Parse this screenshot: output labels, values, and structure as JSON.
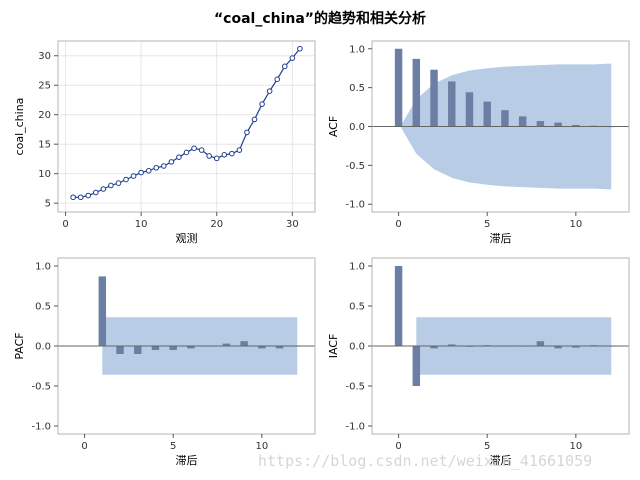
{
  "title": "“coal_china”的趋势和相关分析",
  "watermark": "https://blog.csdn.net/weixin_41661059",
  "colors": {
    "frame": "#b5b5b5",
    "grid": "#e6e6e6",
    "series_line": "#1f3f8f",
    "marker_fill": "#ffffff",
    "bar": "#6b7ea3",
    "band": "#b8cce6",
    "zero_line": "#666666"
  },
  "chart_data": [
    {
      "id": "trend",
      "type": "line",
      "xlabel": "观测",
      "ylabel": "coal_china",
      "xlim": [
        -1,
        33
      ],
      "ylim": [
        3.5,
        32.5
      ],
      "xticks": [
        0,
        10,
        20,
        30
      ],
      "yticks": [
        5,
        10,
        15,
        20,
        25,
        30
      ],
      "grid": true,
      "markers": true,
      "x": [
        1,
        2,
        3,
        4,
        5,
        6,
        7,
        8,
        9,
        10,
        11,
        12,
        13,
        14,
        15,
        16,
        17,
        18,
        19,
        20,
        21,
        22,
        23,
        24,
        25,
        26,
        27,
        28,
        29,
        30,
        31
      ],
      "y": [
        6.0,
        6.0,
        6.3,
        6.8,
        7.4,
        8.0,
        8.4,
        9.0,
        9.6,
        10.2,
        10.5,
        11.0,
        11.3,
        12.0,
        12.8,
        13.6,
        14.3,
        14.0,
        13.0,
        12.6,
        13.2,
        13.4,
        14.0,
        17.0,
        19.2,
        21.8,
        24.0,
        26.0,
        28.2,
        29.6,
        31.2
      ]
    },
    {
      "id": "acf",
      "type": "bar",
      "xlabel": "滞后",
      "ylabel": "ACF",
      "xlim": [
        -1.5,
        13
      ],
      "ylim": [
        -1.1,
        1.1
      ],
      "xticks": [
        0,
        5,
        10
      ],
      "yticks": [
        -1.0,
        -0.5,
        0.0,
        0.5,
        1.0
      ],
      "grid": false,
      "lags": [
        0,
        1,
        2,
        3,
        4,
        5,
        6,
        7,
        8,
        9,
        10,
        11,
        12
      ],
      "values": [
        1.0,
        0.87,
        0.73,
        0.58,
        0.44,
        0.32,
        0.21,
        0.13,
        0.07,
        0.05,
        0.02,
        0.01,
        0.0
      ],
      "confidence_band": {
        "x": [
          0.1,
          1,
          2,
          3,
          4,
          5,
          6,
          7,
          8,
          9,
          10,
          11,
          12
        ],
        "upper": [
          0.0,
          0.35,
          0.55,
          0.66,
          0.72,
          0.75,
          0.77,
          0.78,
          0.79,
          0.8,
          0.8,
          0.8,
          0.81
        ],
        "lower": [
          0.0,
          -0.35,
          -0.55,
          -0.66,
          -0.72,
          -0.75,
          -0.77,
          -0.78,
          -0.79,
          -0.8,
          -0.8,
          -0.8,
          -0.81
        ]
      }
    },
    {
      "id": "pacf",
      "type": "bar",
      "xlabel": "滞后",
      "ylabel": "PACF",
      "xlim": [
        -1.5,
        13
      ],
      "ylim": [
        -1.1,
        1.1
      ],
      "xticks": [
        0,
        5,
        10
      ],
      "yticks": [
        -1.0,
        -0.5,
        0.0,
        0.5,
        1.0
      ],
      "grid": false,
      "lags": [
        1,
        2,
        3,
        4,
        5,
        6,
        7,
        8,
        9,
        10,
        11,
        12
      ],
      "values": [
        0.87,
        -0.1,
        -0.1,
        -0.05,
        -0.05,
        -0.03,
        0.0,
        0.03,
        0.06,
        -0.03,
        -0.03,
        0.0
      ],
      "confidence_band": {
        "x_start": 1,
        "x_end": 12,
        "upper": 0.36,
        "lower": -0.36
      }
    },
    {
      "id": "iacf",
      "type": "bar",
      "xlabel": "滞后",
      "ylabel": "IACF",
      "xlim": [
        -1.5,
        13
      ],
      "ylim": [
        -1.1,
        1.1
      ],
      "xticks": [
        0,
        5,
        10
      ],
      "yticks": [
        -1.0,
        -0.5,
        0.0,
        0.5,
        1.0
      ],
      "grid": false,
      "lags": [
        0,
        1,
        2,
        3,
        4,
        5,
        6,
        7,
        8,
        9,
        10,
        11,
        12
      ],
      "values": [
        1.0,
        -0.5,
        -0.03,
        0.02,
        -0.01,
        0.01,
        0.0,
        0.0,
        0.06,
        -0.03,
        -0.02,
        0.01,
        0.0
      ],
      "confidence_band": {
        "x_start": 1,
        "x_end": 12,
        "upper": 0.36,
        "lower": -0.36
      }
    }
  ]
}
